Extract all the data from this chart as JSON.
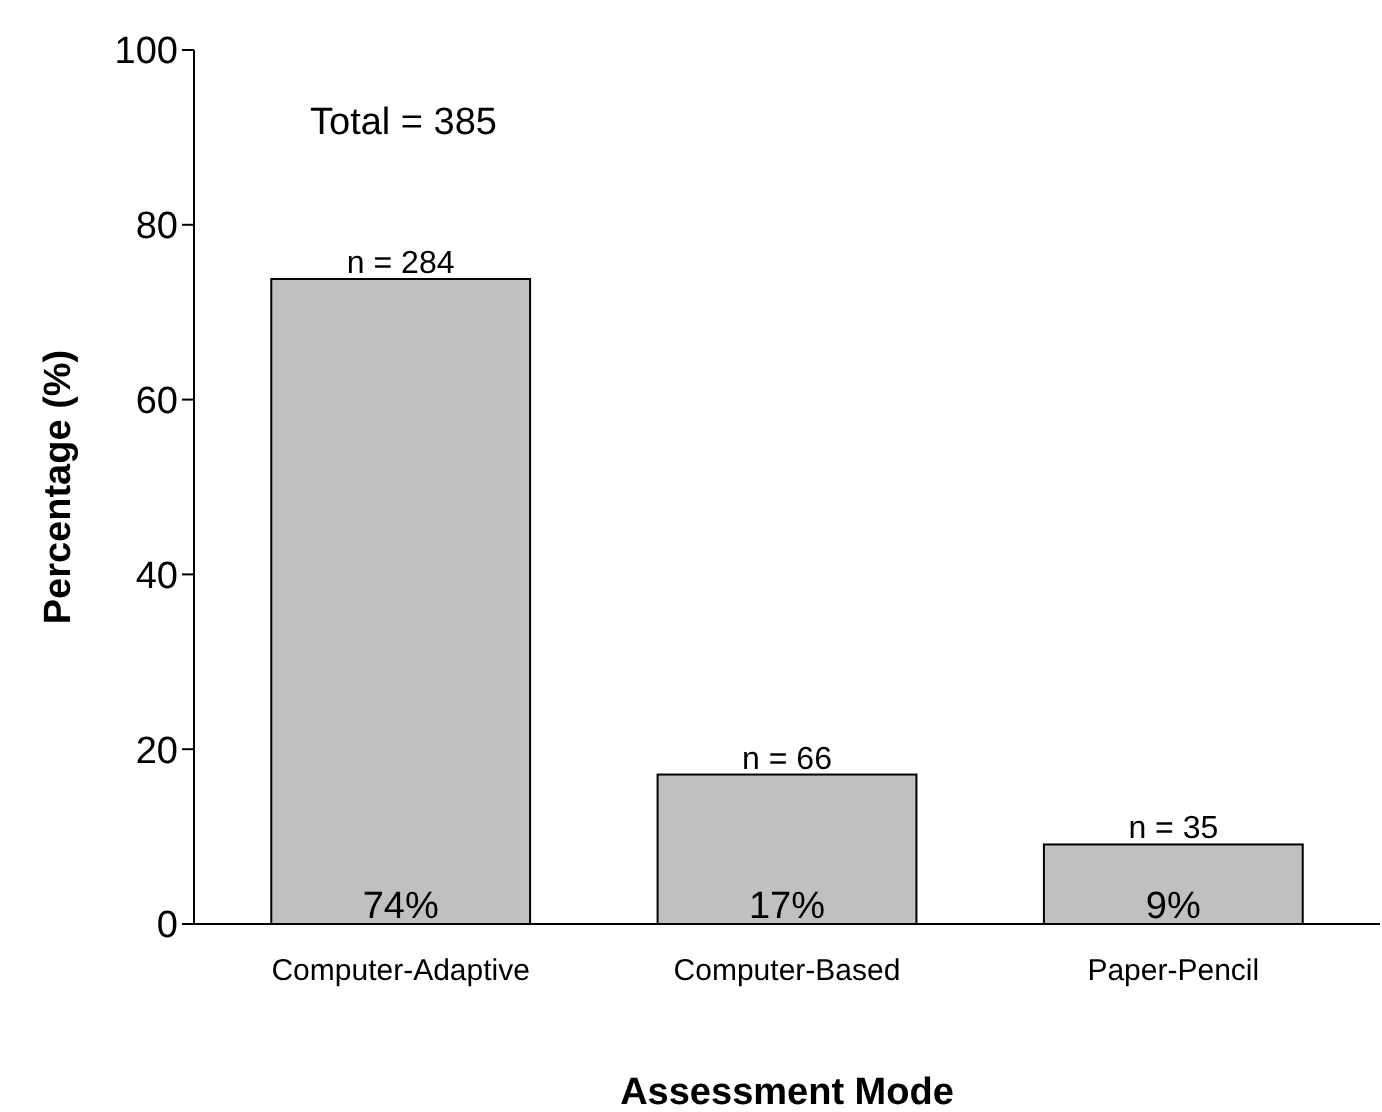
{
  "chart_data": {
    "type": "bar",
    "xlabel": "Assessment Mode",
    "ylabel": "Percentage (%)",
    "categories": [
      "Computer-Adaptive",
      "Computer-Based",
      "Paper-Pencil"
    ],
    "values": [
      73.8,
      17.1,
      9.1
    ],
    "color": "#c0c0c0",
    "value_labels": [
      "74%",
      "17%",
      "9%"
    ],
    "ylim": [
      0,
      100
    ],
    "yticks": [
      0,
      20,
      40,
      60,
      80,
      100
    ],
    "annotations": [
      "Total = 385",
      {
        "text": "n = 284",
        "x": "Computer-Adaptive",
        "y": 73.8
      },
      {
        "text": "n = 66",
        "x": "Computer-Based",
        "y": 17.1
      },
      {
        "text": "n = 35",
        "x": "Paper-Pencil",
        "y": 9.1
      }
    ]
  }
}
